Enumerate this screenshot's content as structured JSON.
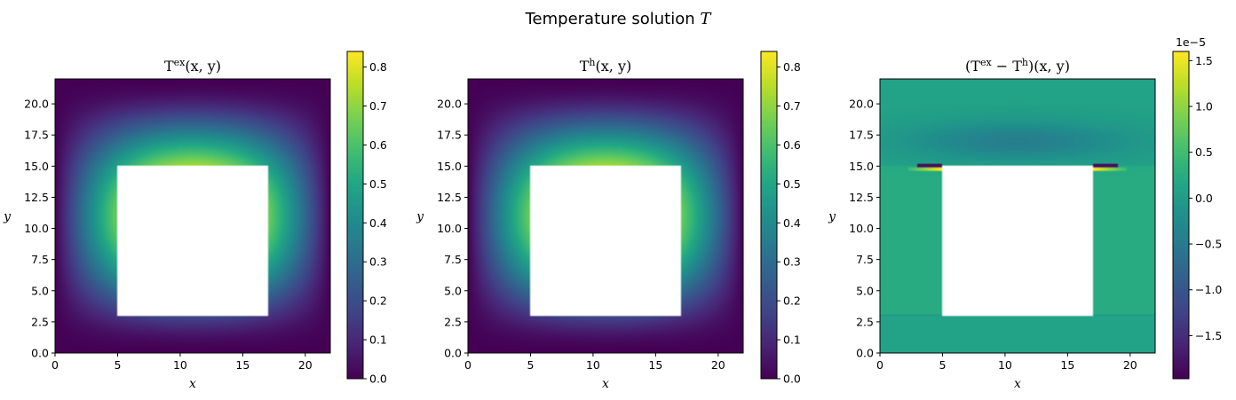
{
  "figure": {
    "title": "Temperature solution",
    "title_variable": "T"
  },
  "colormap": "viridis",
  "chart_data": [
    {
      "type": "heatmap",
      "title": "T^{ex}(x, y)",
      "xlabel": "x",
      "ylabel": "y",
      "xlim": [
        0,
        22
      ],
      "ylim": [
        0,
        22
      ],
      "x_ticks": [
        "0",
        "5",
        "10",
        "15",
        "20"
      ],
      "x_tick_values": [
        0,
        5,
        10,
        15,
        20
      ],
      "y_ticks": [
        "0.0",
        "2.5",
        "5.0",
        "7.5",
        "10.0",
        "12.5",
        "15.0",
        "17.5",
        "20.0"
      ],
      "y_tick_values": [
        0,
        2.5,
        5,
        7.5,
        10,
        12.5,
        15,
        17.5,
        20
      ],
      "hole": {
        "x": [
          5,
          17
        ],
        "y": [
          3,
          15
        ]
      },
      "field": "exact",
      "colorbar": {
        "range": [
          0,
          0.84
        ],
        "ticks": [
          "0.0",
          "0.1",
          "0.2",
          "0.3",
          "0.4",
          "0.5",
          "0.6",
          "0.7",
          "0.8"
        ],
        "tick_values": [
          0,
          0.1,
          0.2,
          0.3,
          0.4,
          0.5,
          0.6,
          0.7,
          0.8
        ],
        "exponent": ""
      }
    },
    {
      "type": "heatmap",
      "title": "T^{h}(x, y)",
      "xlabel": "x",
      "ylabel": "y",
      "xlim": [
        0,
        22
      ],
      "ylim": [
        0,
        22
      ],
      "x_ticks": [
        "0",
        "5",
        "10",
        "15",
        "20"
      ],
      "x_tick_values": [
        0,
        5,
        10,
        15,
        20
      ],
      "y_ticks": [
        "0.0",
        "2.5",
        "5.0",
        "7.5",
        "10.0",
        "12.5",
        "15.0",
        "17.5",
        "20.0"
      ],
      "y_tick_values": [
        0,
        2.5,
        5,
        7.5,
        10,
        12.5,
        15,
        17.5,
        20
      ],
      "hole": {
        "x": [
          5,
          17
        ],
        "y": [
          3,
          15
        ]
      },
      "field": "exact",
      "colorbar": {
        "range": [
          0,
          0.84
        ],
        "ticks": [
          "0.0",
          "0.1",
          "0.2",
          "0.3",
          "0.4",
          "0.5",
          "0.6",
          "0.7",
          "0.8"
        ],
        "tick_values": [
          0,
          0.1,
          0.2,
          0.3,
          0.4,
          0.5,
          0.6,
          0.7,
          0.8
        ],
        "exponent": ""
      }
    },
    {
      "type": "heatmap",
      "title": "(T^{ex} − T^{h})(x, y)",
      "xlabel": "x",
      "ylabel": "y",
      "xlim": [
        0,
        22
      ],
      "ylim": [
        0,
        22
      ],
      "x_ticks": [
        "0",
        "5",
        "10",
        "15",
        "20"
      ],
      "x_tick_values": [
        0,
        5,
        10,
        15,
        20
      ],
      "y_ticks": [
        "0.0",
        "2.5",
        "5.0",
        "7.5",
        "10.0",
        "12.5",
        "15.0",
        "17.5",
        "20.0"
      ],
      "y_tick_values": [
        0,
        2.5,
        5,
        7.5,
        10,
        12.5,
        15,
        17.5,
        20
      ],
      "hole": {
        "x": [
          5,
          17
        ],
        "y": [
          3,
          15
        ]
      },
      "field": "error",
      "colorbar": {
        "range": [
          -1.97,
          1.6
        ],
        "ticks": [
          "−1.5",
          "−1.0",
          "−0.5",
          "0.0",
          "0.5",
          "1.0",
          "1.5"
        ],
        "tick_values": [
          -1.5,
          -1.0,
          -0.5,
          0.0,
          0.5,
          1.0,
          1.5
        ],
        "exponent": "1e−5"
      }
    }
  ]
}
